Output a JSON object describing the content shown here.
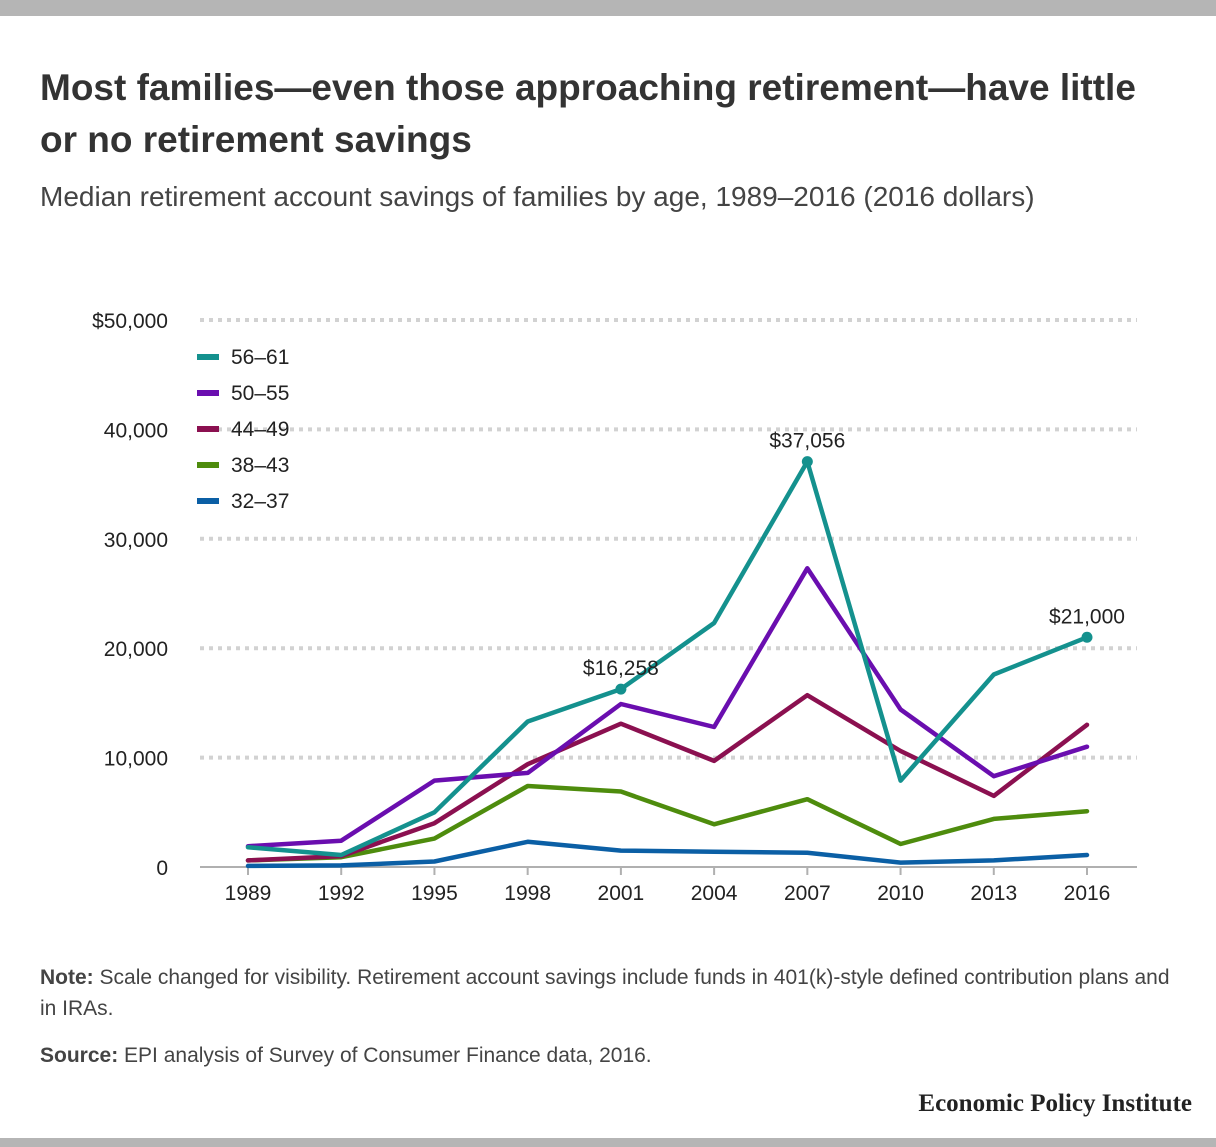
{
  "title": "Most families—even those approaching retirement—have little or no retirement savings",
  "subtitle": "Median retirement account savings of families by age, 1989–2016 (2016 dollars)",
  "note": {
    "label": "Note:",
    "text": " Scale changed for visibility. Retirement account savings include funds in 401(k)-style defined contribution plans and in IRAs."
  },
  "source": {
    "label": "Source:",
    "text": " EPI analysis of Survey of Consumer Finance data, 2016."
  },
  "brand": "Economic Policy Institute",
  "chart_data": {
    "type": "line",
    "title": "",
    "xlabel": "",
    "ylabel": "",
    "x": [
      1989,
      1992,
      1995,
      1998,
      2001,
      2004,
      2007,
      2010,
      2013,
      2016
    ],
    "ylim": [
      0,
      50000
    ],
    "y_ticks": [
      0,
      10000,
      20000,
      30000,
      40000,
      50000
    ],
    "y_tick_labels": [
      "0",
      "10,000",
      "20,000",
      "30,000",
      "40,000",
      "$50,000"
    ],
    "grid": true,
    "legend_position": "top-left",
    "series": [
      {
        "name": "56–61",
        "color": "#14918e",
        "values": [
          1800,
          1100,
          5000,
          13300,
          16258,
          22300,
          37056,
          7900,
          17600,
          21000
        ]
      },
      {
        "name": "50–55",
        "color": "#6a0eaf",
        "values": [
          1900,
          2400,
          7900,
          8600,
          14900,
          12800,
          27300,
          14400,
          8300,
          11000
        ]
      },
      {
        "name": "44–49",
        "color": "#8b1050",
        "values": [
          600,
          1000,
          4000,
          9400,
          13100,
          9700,
          15700,
          10600,
          6500,
          13000
        ]
      },
      {
        "name": "38–43",
        "color": "#4e8c0d",
        "values": [
          600,
          900,
          2600,
          7400,
          6900,
          3900,
          6200,
          2100,
          4400,
          5100
        ]
      },
      {
        "name": "32–37",
        "color": "#0b5fa5",
        "values": [
          100,
          150,
          500,
          2300,
          1500,
          1400,
          1300,
          400,
          600,
          1100
        ]
      }
    ],
    "annotations": [
      {
        "series": "56–61",
        "x": 2001,
        "y": 16258,
        "text": "$16,258"
      },
      {
        "series": "56–61",
        "x": 2007,
        "y": 37056,
        "text": "$37,056"
      },
      {
        "series": "56–61",
        "x": 2016,
        "y": 21000,
        "text": "$21,000"
      }
    ]
  }
}
